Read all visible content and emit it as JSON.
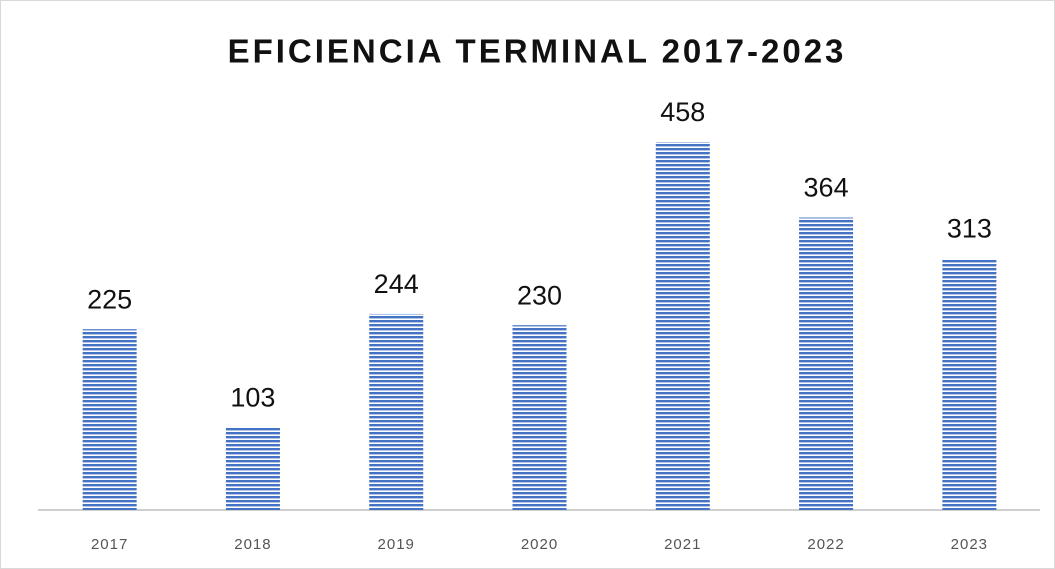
{
  "chart_data": {
    "type": "bar",
    "title": "EFICIENCIA TERMINAL 2017-2023",
    "categories": [
      "2017",
      "2018",
      "2019",
      "2020",
      "2021",
      "2022",
      "2023"
    ],
    "values": [
      225,
      103,
      244,
      230,
      458,
      364,
      313
    ],
    "color": "#4472c4"
  }
}
